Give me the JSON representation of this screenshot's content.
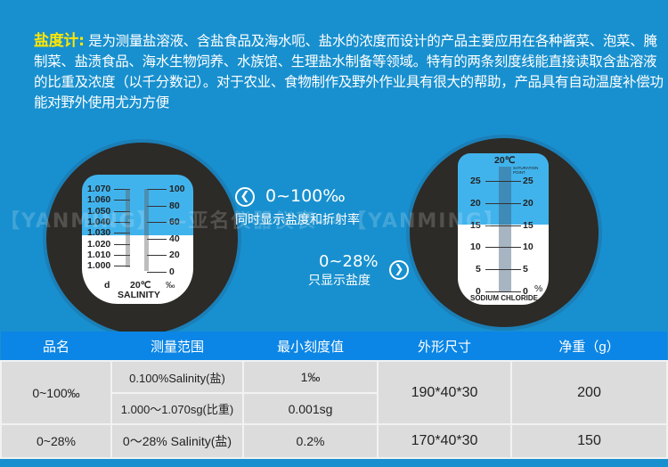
{
  "intro": {
    "title": "盐度计:",
    "text": "是为测量盐溶液、含盐食品及海水呃、盐水的浓度而设计的产品主要应用在各种酱菜、泡菜、腌制菜、盐渍食品、海水生物饲养、水族馆、生理盐水制备等领域。特有的两条刻度线能直接读取含盐溶液的比重及浓度（以千分数记）。对于农业、食物制作及野外作业具有很大的帮助，产品具有自动温度补偿功能对野外使用尤为方便"
  },
  "left_scale": {
    "sg_ticks": [
      "1.070",
      "1.060",
      "1.050",
      "1.040",
      "1.030",
      "1.020",
      "1.010",
      "1.000"
    ],
    "permil_ticks": [
      "100",
      "80",
      "60",
      "40",
      "20",
      "0"
    ],
    "unit_left": "d",
    "temp": "20℃",
    "unit_right": "‰",
    "name": "SALINITY"
  },
  "right_scale": {
    "temp": "20℃",
    "saturation": "SATURATION POINT",
    "ticks": [
      "25",
      "20",
      "15",
      "10",
      "5",
      "0"
    ],
    "unit": "%",
    "name": "SODIUM CHLORIDE"
  },
  "callout_left": {
    "icon": "chevron-left-icon",
    "range": "0~100‰",
    "desc": "同时显示盐度和折射率"
  },
  "callout_right": {
    "icon": "chevron-right-icon",
    "range": "0~28%",
    "desc": "只显示盐度"
  },
  "watermark": "【YANMING】 —亚名仪器仪表— 【YANMING】",
  "table": {
    "headers": [
      "品名",
      "测量范围",
      "最小刻度值",
      "外形尺寸",
      "净重（g）"
    ],
    "rows": [
      {
        "name": "0~100‰",
        "range1": "0.100%Salinity(盐)",
        "min1": "1‰",
        "range2": "1.000～1.070sg(比重)",
        "min2": "0.001sg",
        "size": "190*40*30",
        "weight": "200"
      },
      {
        "name": "0~28%",
        "range": "0～28% Salinity(盐)",
        "min": "0.2%",
        "size": "170*40*30",
        "weight": "150"
      }
    ]
  },
  "colors": {
    "background": "#1890cf",
    "header": "#0b86e6",
    "highlight": "#ffe600",
    "scale_blue": "#41b3ec"
  }
}
